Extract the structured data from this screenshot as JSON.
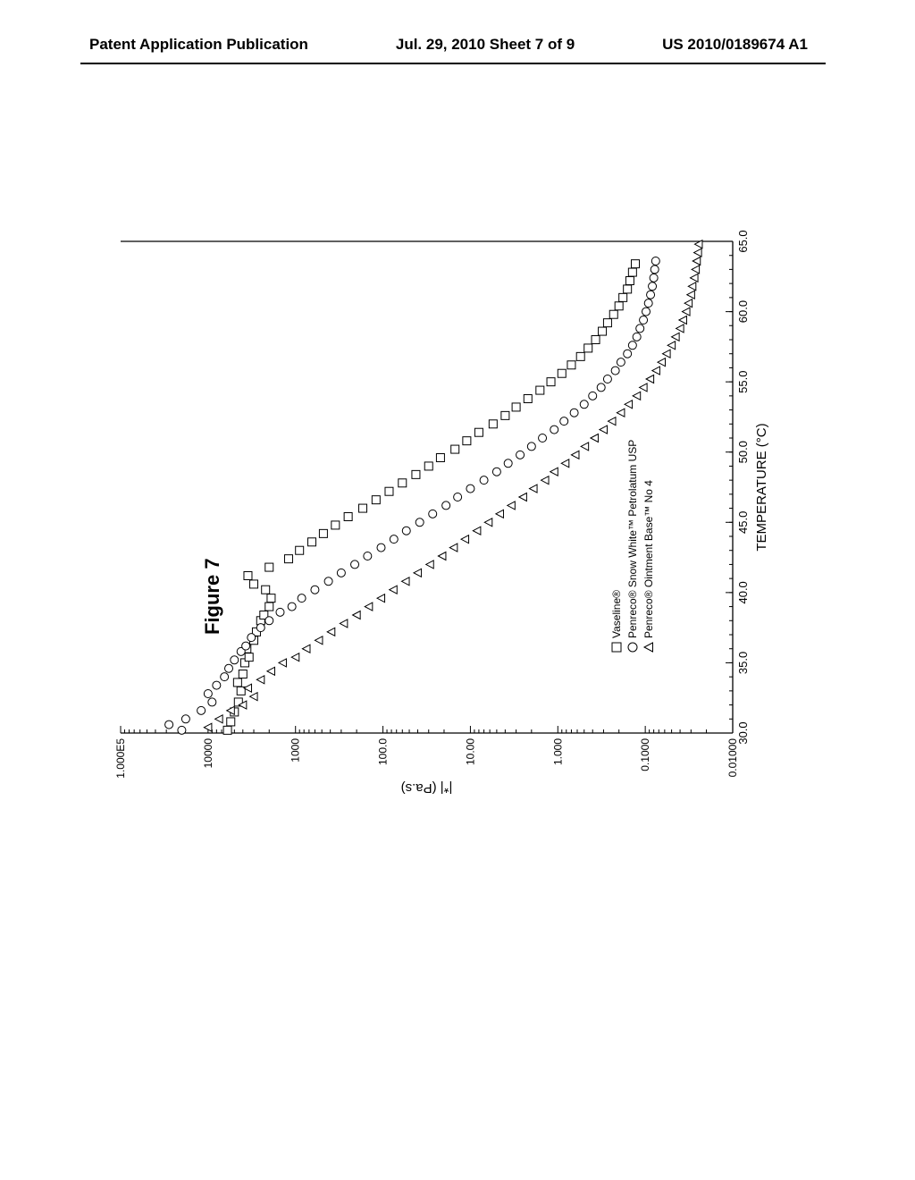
{
  "header": {
    "left": "Patent Application Publication",
    "center": "Jul. 29, 2010  Sheet 7 of 9",
    "right": "US 2010/0189674 A1"
  },
  "figure_label": "Figure 7",
  "chart": {
    "type": "scatter",
    "xlabel": "TEMPERATURE (°C)",
    "ylabel": "|*| (Pa.s)",
    "xlim": [
      30.0,
      65.0
    ],
    "xticks": [
      30.0,
      35.0,
      40.0,
      45.0,
      50.0,
      55.0,
      60.0,
      65.0
    ],
    "yscale": "log",
    "ylim": [
      0.01,
      100000
    ],
    "yticks": [
      0.01,
      0.1,
      1.0,
      10.0,
      100.0,
      1000,
      10000,
      100000
    ],
    "ytick_labels": [
      "0.01000",
      "0.1000",
      "1.000",
      "10.00",
      "100.0",
      "1000",
      "10000",
      "1.000E5"
    ],
    "background_color": "#ffffff",
    "axis_color": "#000000",
    "marker_fill": "#ffffff",
    "marker_stroke": "#000000",
    "marker_size": 5,
    "legend": {
      "items": [
        {
          "marker": "square",
          "label": "Vaseline®"
        },
        {
          "marker": "circle",
          "label": "Penreco® Snow White™ Petrolatum USP"
        },
        {
          "marker": "triangle",
          "label": "Penreco® Ointment Base™ No 4"
        }
      ]
    },
    "series": [
      {
        "marker": "square",
        "data": [
          [
            30.2,
            6000
          ],
          [
            30.8,
            5500
          ],
          [
            31.5,
            5000
          ],
          [
            32.2,
            4500
          ],
          [
            33.0,
            4200
          ],
          [
            33.6,
            4600
          ],
          [
            34.2,
            4000
          ],
          [
            35.0,
            3800
          ],
          [
            35.4,
            3400
          ],
          [
            36.0,
            3600
          ],
          [
            36.6,
            3000
          ],
          [
            37.2,
            2800
          ],
          [
            38.0,
            2500
          ],
          [
            38.4,
            2300
          ],
          [
            39.0,
            2000
          ],
          [
            39.6,
            1900
          ],
          [
            40.2,
            2200
          ],
          [
            40.6,
            3000
          ],
          [
            41.2,
            3500
          ],
          [
            41.8,
            2000
          ],
          [
            42.4,
            1200
          ],
          [
            43.0,
            900
          ],
          [
            43.6,
            650
          ],
          [
            44.2,
            480
          ],
          [
            44.8,
            350
          ],
          [
            45.4,
            250
          ],
          [
            46.0,
            170
          ],
          [
            46.6,
            120
          ],
          [
            47.2,
            85
          ],
          [
            47.8,
            60
          ],
          [
            48.4,
            42
          ],
          [
            49.0,
            30
          ],
          [
            49.6,
            22
          ],
          [
            50.2,
            15
          ],
          [
            50.8,
            11
          ],
          [
            51.4,
            8
          ],
          [
            52.0,
            5.5
          ],
          [
            52.6,
            4
          ],
          [
            53.2,
            3
          ],
          [
            53.8,
            2.2
          ],
          [
            54.4,
            1.6
          ],
          [
            55.0,
            1.2
          ],
          [
            55.6,
            0.9
          ],
          [
            56.2,
            0.7
          ],
          [
            56.8,
            0.55
          ],
          [
            57.4,
            0.45
          ],
          [
            58.0,
            0.37
          ],
          [
            58.6,
            0.31
          ],
          [
            59.2,
            0.27
          ],
          [
            59.8,
            0.23
          ],
          [
            60.4,
            0.2
          ],
          [
            61.0,
            0.18
          ],
          [
            61.6,
            0.16
          ],
          [
            62.2,
            0.15
          ],
          [
            62.8,
            0.14
          ],
          [
            63.4,
            0.13
          ]
        ]
      },
      {
        "marker": "circle",
        "data": [
          [
            30.2,
            20000
          ],
          [
            30.6,
            28000
          ],
          [
            31.0,
            18000
          ],
          [
            31.6,
            12000
          ],
          [
            32.2,
            9000
          ],
          [
            32.8,
            10000
          ],
          [
            33.4,
            8000
          ],
          [
            34.0,
            6500
          ],
          [
            34.6,
            5800
          ],
          [
            35.2,
            5000
          ],
          [
            35.8,
            4200
          ],
          [
            36.2,
            3700
          ],
          [
            36.8,
            3200
          ],
          [
            37.5,
            2500
          ],
          [
            38.0,
            2000
          ],
          [
            38.6,
            1500
          ],
          [
            39.0,
            1100
          ],
          [
            39.6,
            850
          ],
          [
            40.2,
            600
          ],
          [
            40.8,
            420
          ],
          [
            41.4,
            300
          ],
          [
            42.0,
            210
          ],
          [
            42.6,
            150
          ],
          [
            43.2,
            105
          ],
          [
            43.8,
            75
          ],
          [
            44.4,
            54
          ],
          [
            45.0,
            38
          ],
          [
            45.6,
            27
          ],
          [
            46.2,
            19
          ],
          [
            46.8,
            14
          ],
          [
            47.4,
            10
          ],
          [
            48.0,
            7
          ],
          [
            48.6,
            5
          ],
          [
            49.2,
            3.7
          ],
          [
            49.8,
            2.7
          ],
          [
            50.4,
            2
          ],
          [
            51.0,
            1.5
          ],
          [
            51.6,
            1.1
          ],
          [
            52.2,
            0.85
          ],
          [
            52.8,
            0.65
          ],
          [
            53.4,
            0.5
          ],
          [
            54.0,
            0.4
          ],
          [
            54.6,
            0.32
          ],
          [
            55.2,
            0.27
          ],
          [
            55.8,
            0.22
          ],
          [
            56.4,
            0.19
          ],
          [
            57.0,
            0.16
          ],
          [
            57.6,
            0.14
          ],
          [
            58.2,
            0.125
          ],
          [
            58.8,
            0.115
          ],
          [
            59.4,
            0.105
          ],
          [
            60.0,
            0.098
          ],
          [
            60.6,
            0.092
          ],
          [
            61.2,
            0.087
          ],
          [
            61.8,
            0.083
          ],
          [
            62.4,
            0.08
          ],
          [
            63.0,
            0.078
          ],
          [
            63.6,
            0.076
          ]
        ]
      },
      {
        "marker": "triangle",
        "data": [
          [
            30.4,
            10000
          ],
          [
            31.0,
            7500
          ],
          [
            31.6,
            5500
          ],
          [
            32.0,
            4000
          ],
          [
            32.6,
            3000
          ],
          [
            33.2,
            3500
          ],
          [
            33.8,
            2500
          ],
          [
            34.4,
            1900
          ],
          [
            35.0,
            1400
          ],
          [
            35.4,
            1000
          ],
          [
            36.0,
            750
          ],
          [
            36.6,
            540
          ],
          [
            37.2,
            390
          ],
          [
            37.8,
            280
          ],
          [
            38.4,
            200
          ],
          [
            39.0,
            145
          ],
          [
            39.6,
            105
          ],
          [
            40.2,
            76
          ],
          [
            40.8,
            55
          ],
          [
            41.4,
            40
          ],
          [
            42.0,
            29
          ],
          [
            42.6,
            21
          ],
          [
            43.2,
            15.5
          ],
          [
            43.8,
            11.5
          ],
          [
            44.4,
            8.4
          ],
          [
            45.0,
            6.2
          ],
          [
            45.6,
            4.6
          ],
          [
            46.2,
            3.4
          ],
          [
            46.8,
            2.5
          ],
          [
            47.4,
            1.9
          ],
          [
            48.0,
            1.4
          ],
          [
            48.6,
            1.1
          ],
          [
            49.2,
            0.82
          ],
          [
            49.8,
            0.63
          ],
          [
            50.4,
            0.49
          ],
          [
            51.0,
            0.38
          ],
          [
            51.6,
            0.3
          ],
          [
            52.2,
            0.24
          ],
          [
            52.8,
            0.19
          ],
          [
            53.4,
            0.155
          ],
          [
            54.0,
            0.125
          ],
          [
            54.6,
            0.105
          ],
          [
            55.2,
            0.088
          ],
          [
            55.8,
            0.075
          ],
          [
            56.4,
            0.065
          ],
          [
            57.0,
            0.057
          ],
          [
            57.6,
            0.05
          ],
          [
            58.2,
            0.045
          ],
          [
            58.8,
            0.04
          ],
          [
            59.4,
            0.037
          ],
          [
            60.0,
            0.034
          ],
          [
            60.6,
            0.032
          ],
          [
            61.2,
            0.03
          ],
          [
            61.8,
            0.029
          ],
          [
            62.4,
            0.0275
          ],
          [
            63.0,
            0.0265
          ],
          [
            63.6,
            0.0258
          ],
          [
            64.2,
            0.025
          ],
          [
            64.8,
            0.0245
          ]
        ]
      }
    ]
  }
}
